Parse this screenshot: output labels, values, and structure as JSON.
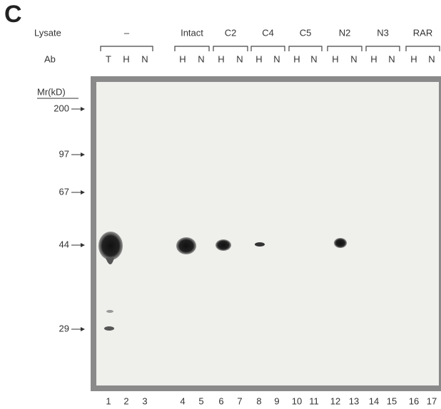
{
  "panel_label": "C",
  "row_labels": {
    "lysate": "Lysate",
    "ab": "Ab"
  },
  "groups": [
    "–",
    "Intact",
    "C2",
    "C4",
    "C5",
    "N2",
    "N3",
    "RAR"
  ],
  "ab_labels": [
    "T",
    "H",
    "N",
    "H",
    "N",
    "H",
    "N",
    "H",
    "N",
    "H",
    "N",
    "H",
    "N",
    "H",
    "N",
    "H",
    "N"
  ],
  "lane_numbers": [
    1,
    2,
    3,
    4,
    5,
    6,
    7,
    8,
    9,
    10,
    11,
    12,
    13,
    14,
    15,
    16,
    17
  ],
  "markers": {
    "title": "Mr(kD)",
    "labels": [
      "200",
      "97",
      "67",
      "44",
      "29"
    ]
  }
}
